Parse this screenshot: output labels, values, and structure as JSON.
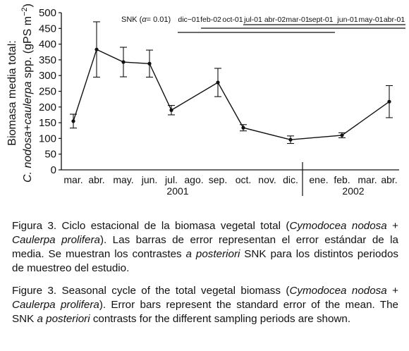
{
  "chart_data": {
    "type": "line",
    "ylabel_line1": "Biomasa media total:",
    "ylabel_line2_italic": "C. nodosa+caulerpa",
    "ylabel_line2_rest": " spp. (gPS m",
    "ylabel_exponent": "−2",
    "ylabel_close": ")",
    "ylim": [
      0,
      500
    ],
    "yticks": [
      "0",
      "50",
      "100",
      "150",
      "200",
      "250",
      "300",
      "350",
      "400",
      "450",
      "500"
    ],
    "categories": [
      "mar.",
      "abr.",
      "may.",
      "jun.",
      "jul.",
      "ago.",
      "sep.",
      "oct.",
      "nov.",
      "dic.",
      "ene.",
      "feb.",
      "mar.",
      "abr."
    ],
    "years": [
      {
        "label": "2001"
      },
      {
        "label": "2002"
      }
    ],
    "points": [
      {
        "month": "mar.",
        "value": 155,
        "se": 22
      },
      {
        "month": "abr.",
        "value": 383,
        "se": 88
      },
      {
        "month": "may.",
        "value": 343,
        "se": 47
      },
      {
        "month": "jun.",
        "value": 338,
        "se": 43
      },
      {
        "month": "jul.",
        "value": 190,
        "se": 15
      },
      {
        "month": "sep.",
        "value": 278,
        "se": 45
      },
      {
        "month": "oct.",
        "value": 134,
        "se": 10
      },
      {
        "month": "dic.",
        "value": 96,
        "se": 12
      },
      {
        "month": "feb.",
        "value": 110,
        "se": 8
      },
      {
        "month": "abr.",
        "value": 217,
        "se": 51
      }
    ],
    "snk": {
      "title": "SNK (",
      "alpha_symbol": "α",
      "alpha_rest": "= 0.01)",
      "groups": [
        "dic−01",
        "feb-02",
        "oct-01",
        "jul-01",
        "abr-02",
        "mar-01",
        "sept-01",
        "jun-01",
        "may-01",
        "abr-01"
      ],
      "homogeneous_lines": [
        {
          "from": "dic−01",
          "to": "sept-01"
        },
        {
          "from": "feb-02",
          "to": "abr-01"
        },
        {
          "from": "jul-01",
          "to": "abr-01"
        }
      ]
    }
  },
  "caption_es": {
    "label": "Figura 3.",
    "t1": " Ciclo estacional de la biomasa vegetal total (",
    "species1": "Cymodocea nodosa",
    "t2": " + ",
    "species2": "Caulerpa prolifera",
    "t3": "). Las barras de error representan el error estándar de la media. Se muestran los contrastes ",
    "posteriori": "a posteriori",
    "t4": " SNK para los distintos periodos de muestreo del estudio."
  },
  "caption_en": {
    "label": "Figure 3.",
    "t1": " Seasonal cycle of the total vegetal biomass (",
    "species1": "Cymodocea nodosa",
    "t2": " + ",
    "species2": "Caulerpa prolifera",
    "t3": "). Error bars represent the standard error of the mean. The SNK ",
    "posteriori": "a posteriori",
    "t4": " contrasts for the different sampling periods are shown."
  }
}
